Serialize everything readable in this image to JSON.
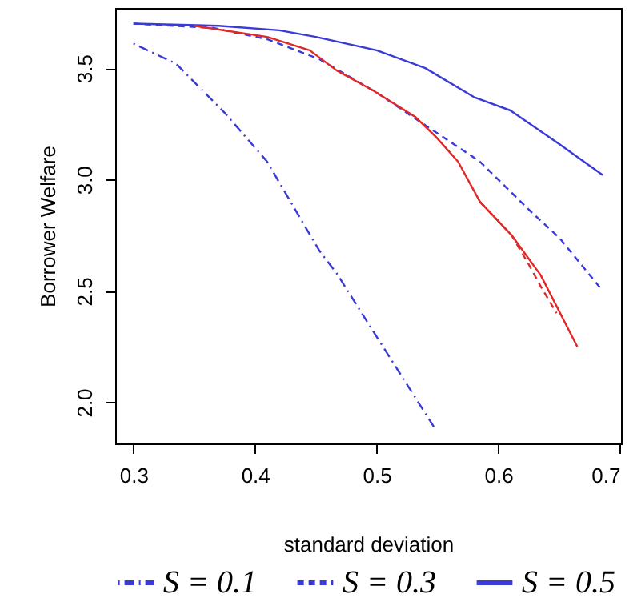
{
  "chart_data": {
    "type": "line",
    "xlabel": "standard deviation",
    "ylabel": "Borrower Welfare",
    "xlim": [
      0.285,
      0.701
    ],
    "ylim": [
      1.815,
      3.77
    ],
    "xticks": [
      0.3,
      0.4,
      0.5,
      0.6,
      0.7
    ],
    "yticks": [
      {
        "value": 2.0,
        "label": "2.0"
      },
      {
        "value": 2.5,
        "label": "2.5"
      },
      {
        "value": 3.0,
        "label": "3.0"
      },
      {
        "value": 3.5,
        "label": "3.5"
      }
    ],
    "grid": false,
    "legend": "bottom",
    "series": [
      {
        "name": "S = 0.1",
        "color": "#3a3ad6",
        "line_style": "dotted",
        "x": [
          0.3,
          0.335,
          0.375,
          0.41,
          0.44,
          0.453,
          0.467,
          0.497,
          0.547
        ],
        "values": [
          3.61,
          3.52,
          3.3,
          3.08,
          2.8,
          2.68,
          2.58,
          2.32,
          1.89
        ]
      },
      {
        "name": "S = 0.3",
        "color": "#3a3ad6",
        "line_style": "dashed",
        "x": [
          0.3,
          0.366,
          0.41,
          0.453,
          0.5,
          0.541,
          0.585,
          0.628,
          0.65,
          0.686
        ],
        "values": [
          3.7,
          3.68,
          3.63,
          3.54,
          3.39,
          3.24,
          3.08,
          2.85,
          2.74,
          2.5
        ]
      },
      {
        "name": "S = 0.5",
        "color": "#3a3ad6",
        "line_style": "solid",
        "x": [
          0.3,
          0.37,
          0.42,
          0.45,
          0.5,
          0.54,
          0.58,
          0.61,
          0.65,
          0.686
        ],
        "values": [
          3.7,
          3.69,
          3.67,
          3.64,
          3.58,
          3.5,
          3.37,
          3.31,
          3.16,
          3.02
        ]
      },
      {
        "color": "#e02828",
        "line_style": "solid",
        "x": [
          0.35,
          0.41,
          0.445,
          0.467,
          0.497,
          0.532,
          0.549,
          0.567,
          0.585,
          0.611,
          0.635,
          0.665
        ],
        "values": [
          3.69,
          3.64,
          3.58,
          3.49,
          3.4,
          3.28,
          3.19,
          3.08,
          2.9,
          2.75,
          2.57,
          2.25
        ]
      },
      {
        "color": "#e02828",
        "line_style": "dashed",
        "x": [
          0.585,
          0.611,
          0.625,
          0.635,
          0.648
        ],
        "values": [
          2.9,
          2.75,
          2.62,
          2.52,
          2.4
        ]
      }
    ]
  }
}
